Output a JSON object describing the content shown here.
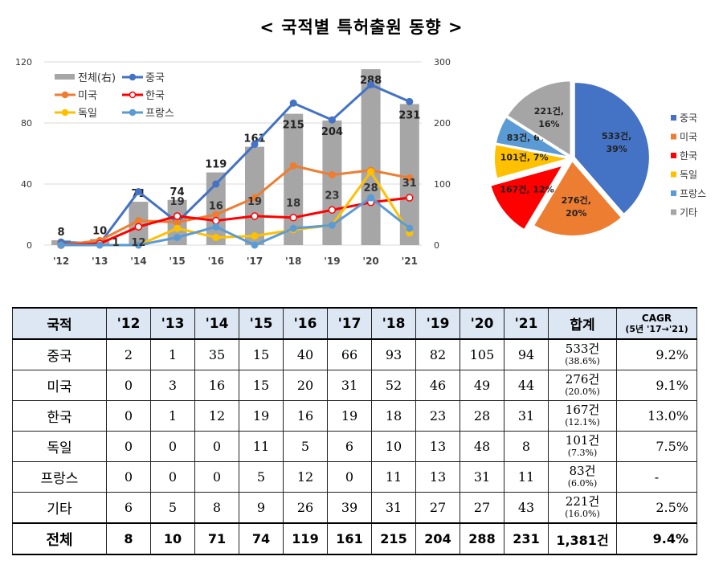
{
  "title": "< 국적별 특허출원 동향 >",
  "chart_data": [
    {
      "type": "bar+line",
      "categories": [
        "'12",
        "'13",
        "'14",
        "'15",
        "'16",
        "'17",
        "'18",
        "'19",
        "'20",
        "'21"
      ],
      "left_axis": {
        "ylim": [
          0,
          120
        ],
        "ticks": [
          0,
          40,
          80,
          120
        ]
      },
      "right_axis": {
        "ylim": [
          0,
          300
        ],
        "ticks": [
          0,
          100,
          200,
          300
        ]
      },
      "bar_series": {
        "name": "전체(右)",
        "color": "#a6a6a6",
        "values": [
          8,
          10,
          71,
          74,
          119,
          161,
          215,
          204,
          288,
          231
        ]
      },
      "series": [
        {
          "name": "중국",
          "color": "#4472c4",
          "values": [
            2,
            1,
            35,
            15,
            40,
            66,
            93,
            82,
            105,
            94
          ]
        },
        {
          "name": "미국",
          "color": "#ed7d31",
          "values": [
            0,
            3,
            16,
            15,
            20,
            31,
            52,
            46,
            49,
            44
          ]
        },
        {
          "name": "한국",
          "color": "#ff0000",
          "values": [
            0,
            1,
            12,
            19,
            16,
            19,
            18,
            23,
            28,
            31
          ]
        },
        {
          "name": "독일",
          "color": "#ffc000",
          "values": [
            0,
            0,
            0,
            11,
            5,
            6,
            10,
            13,
            48,
            8
          ]
        },
        {
          "name": "프랑스",
          "color": "#5b9bd5",
          "values": [
            0,
            0,
            0,
            5,
            12,
            0,
            11,
            13,
            31,
            11
          ]
        }
      ],
      "korea_labels": [
        "",
        "1",
        "12",
        "19",
        "16",
        "19",
        "18",
        "23",
        "28",
        "31"
      ],
      "legend": "top-left"
    },
    {
      "type": "pie",
      "labels": [
        "중국",
        "미국",
        "한국",
        "독일",
        "프랑스",
        "기타"
      ],
      "values": [
        533,
        276,
        167,
        101,
        83,
        221
      ],
      "slice_labels": [
        "533건, 39%",
        "276건, 20%",
        "167건, 12%",
        "101건, 7%",
        "83건, 6%",
        "221건, 16%"
      ],
      "colors": [
        "#4472c4",
        "#ed7d31",
        "#ff0000",
        "#ffc000",
        "#5b9bd5",
        "#a5a5a5"
      ],
      "legend": "right"
    }
  ],
  "table": {
    "headers": [
      "국적",
      "'12",
      "'13",
      "'14",
      "'15",
      "'16",
      "'17",
      "'18",
      "'19",
      "'20",
      "'21",
      "합계",
      "CAGR",
      "(5년 '17→'21)"
    ],
    "rows": [
      {
        "name": "중국",
        "values": [
          "2",
          "1",
          "35",
          "15",
          "40",
          "66",
          "93",
          "82",
          "105",
          "94"
        ],
        "sum": "533건",
        "pct": "(38.6%)",
        "cagr": "9.2%"
      },
      {
        "name": "미국",
        "values": [
          "0",
          "3",
          "16",
          "15",
          "20",
          "31",
          "52",
          "46",
          "49",
          "44"
        ],
        "sum": "276건",
        "pct": "(20.0%)",
        "cagr": "9.1%"
      },
      {
        "name": "한국",
        "values": [
          "0",
          "1",
          "12",
          "19",
          "16",
          "19",
          "18",
          "23",
          "28",
          "31"
        ],
        "sum": "167건",
        "pct": "(12.1%)",
        "cagr": "13.0%"
      },
      {
        "name": "독일",
        "values": [
          "0",
          "0",
          "0",
          "11",
          "5",
          "6",
          "10",
          "13",
          "48",
          "8"
        ],
        "sum": "101건",
        "pct": "(7.3%)",
        "cagr": "7.5%"
      },
      {
        "name": "프랑스",
        "values": [
          "0",
          "0",
          "0",
          "5",
          "12",
          "0",
          "11",
          "13",
          "31",
          "11"
        ],
        "sum": "83건",
        "pct": "(6.0%)",
        "cagr": "-"
      },
      {
        "name": "기타",
        "values": [
          "6",
          "5",
          "8",
          "9",
          "26",
          "39",
          "31",
          "27",
          "27",
          "43"
        ],
        "sum": "221건",
        "pct": "(16.0%)",
        "cagr": "2.5%"
      }
    ],
    "total": {
      "name": "전체",
      "values": [
        "8",
        "10",
        "71",
        "74",
        "119",
        "161",
        "215",
        "204",
        "288",
        "231"
      ],
      "sum": "1,381건",
      "cagr": "9.4%"
    }
  }
}
